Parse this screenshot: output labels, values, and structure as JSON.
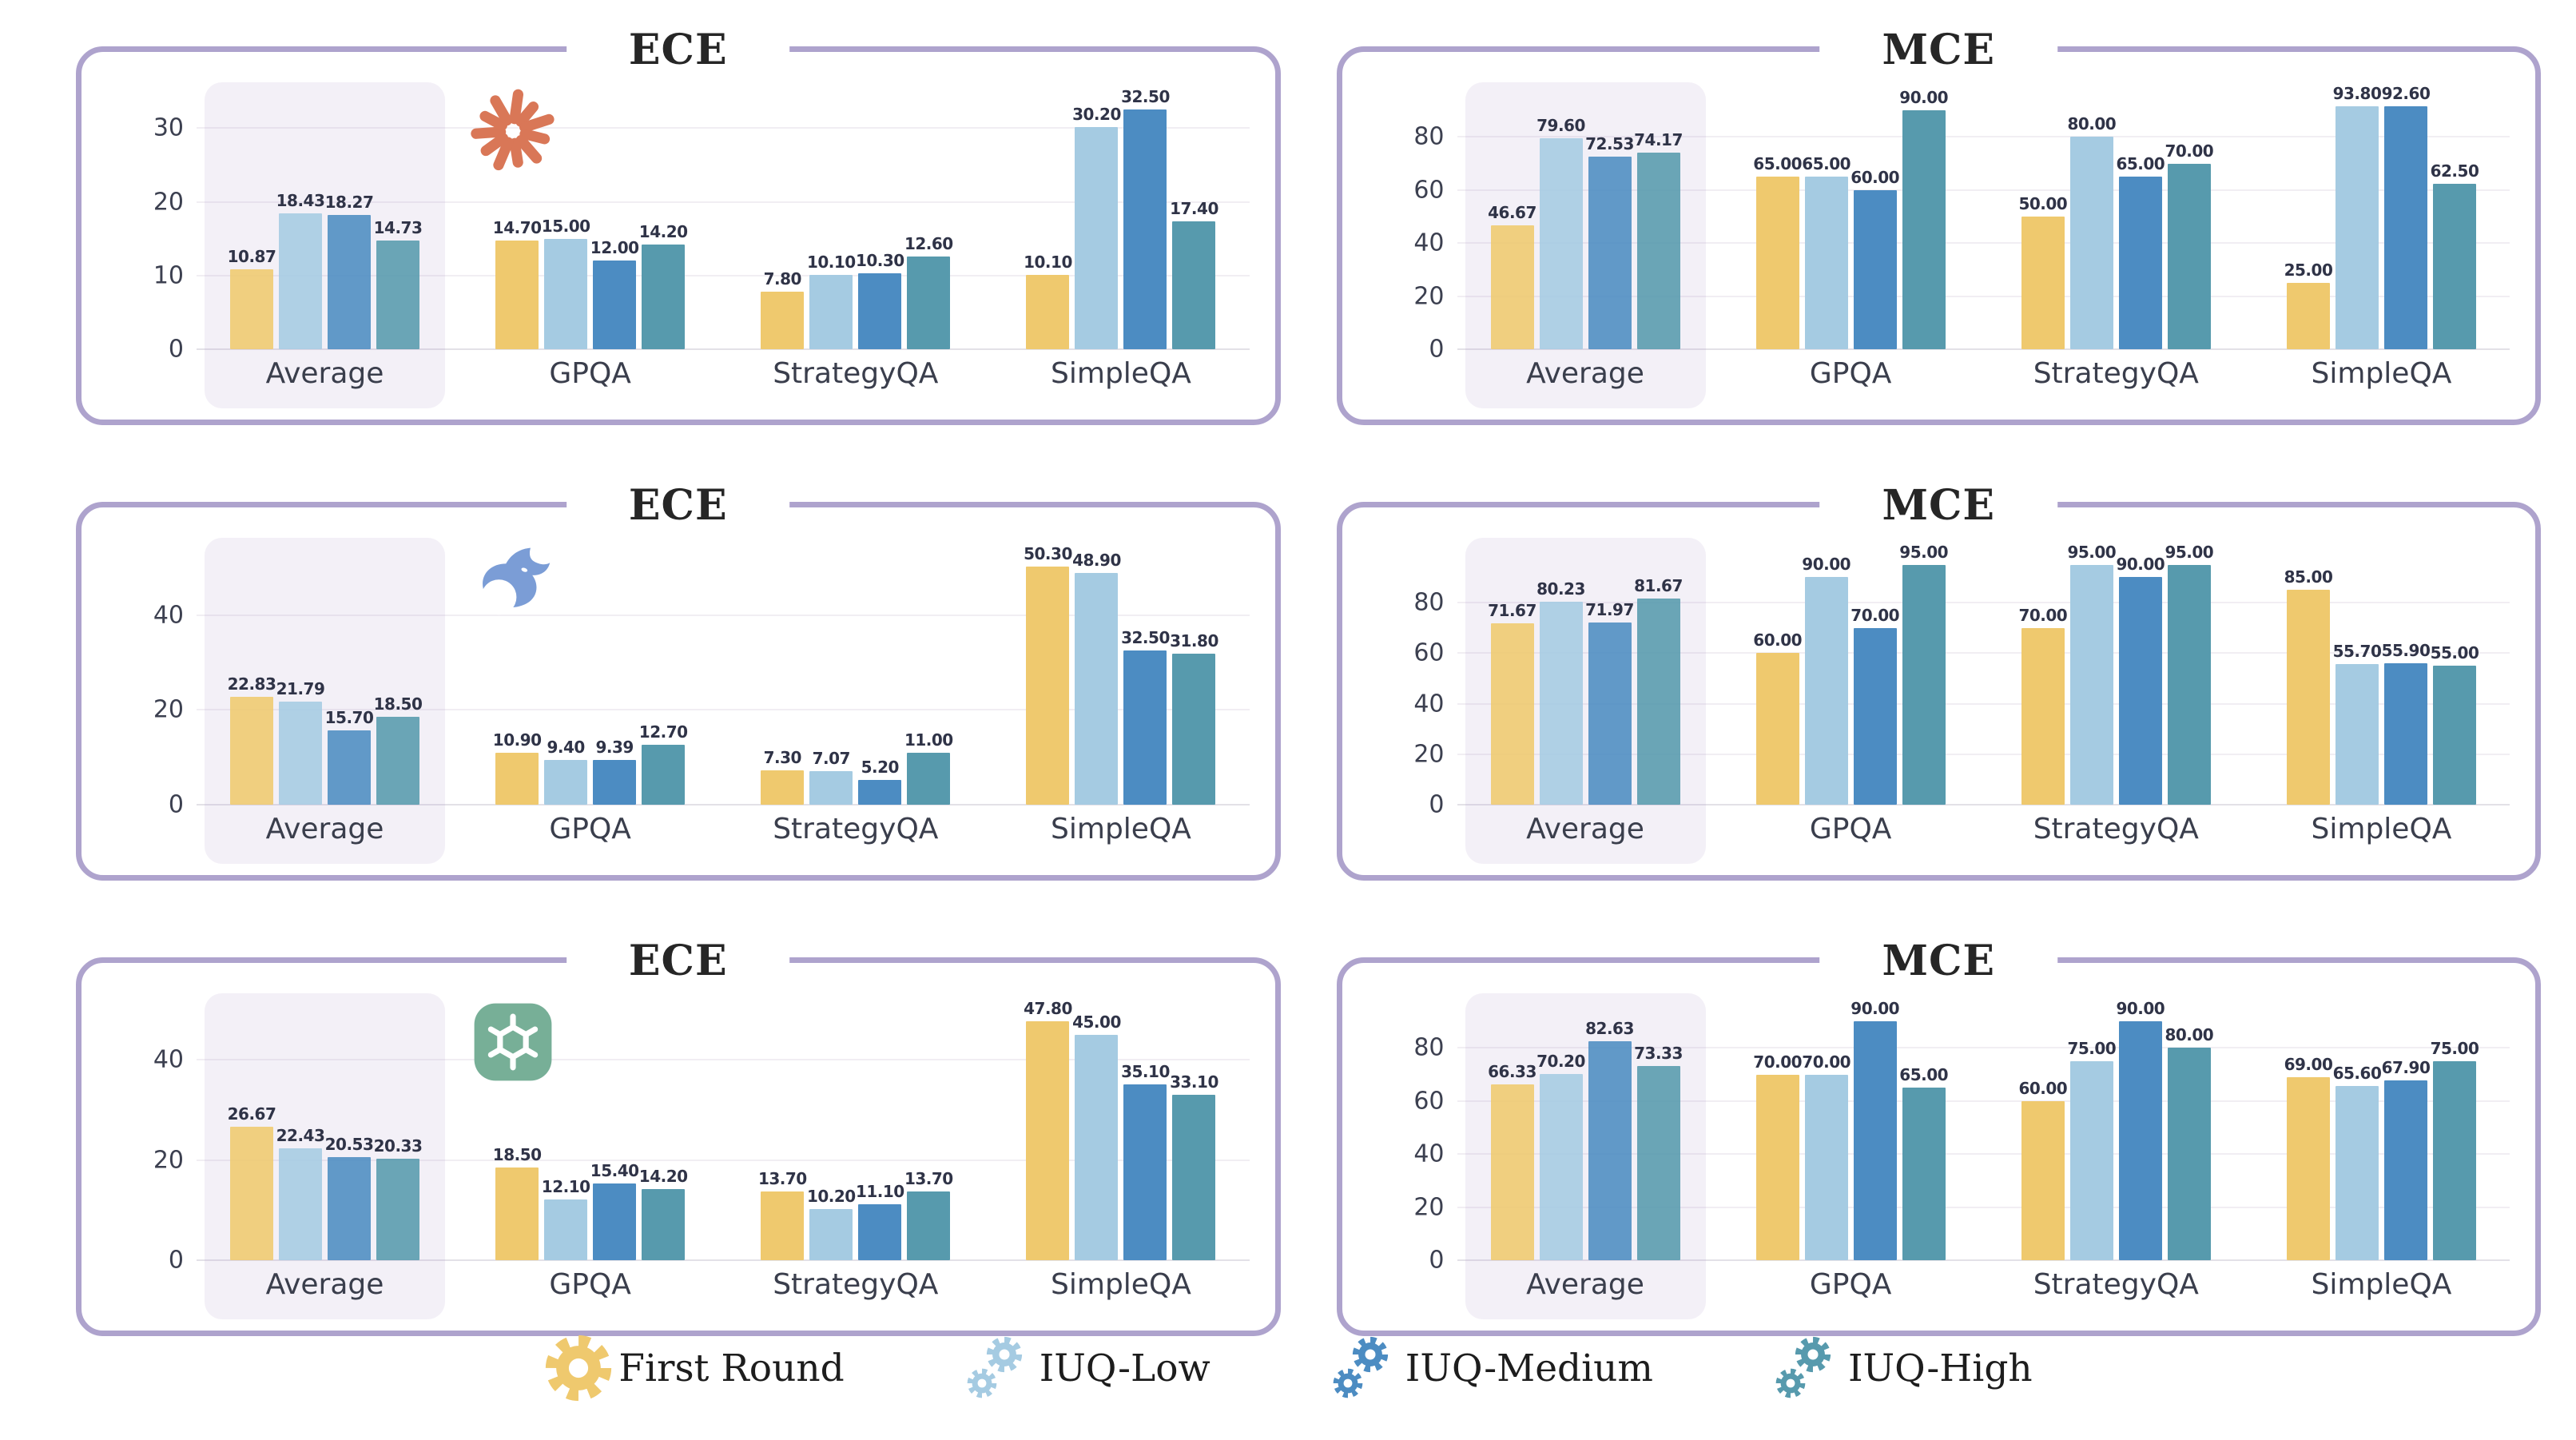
{
  "style": {
    "panel_border_color": "#AEA3CD",
    "highlight_box_color": "#EFEBF4",
    "grid_color": "#F1EEF3",
    "value_label_color": "#2F3347",
    "claude_logo_color": "#D97757",
    "deepseek_logo_color": "#7B9DD6",
    "openai_logo_color": "#77AF97"
  },
  "series": [
    {
      "label": "First Round",
      "color": "#EFC96E"
    },
    {
      "label": "IUQ-Low",
      "color": "#A5CBE2"
    },
    {
      "label": "IUQ-Medium",
      "color": "#4C8CC2"
    },
    {
      "label": "IUQ-High",
      "color": "#579AAD"
    }
  ],
  "chart_data": [
    {
      "type": "bar",
      "title": "ECE",
      "icon": "claude",
      "categories": [
        "Average",
        "GPQA",
        "StrategyQA",
        "SimpleQA"
      ],
      "highlight_category": "Average",
      "yticks": [
        0,
        10,
        20,
        30
      ],
      "ylim": [
        0,
        36
      ],
      "grid": true,
      "groups": [
        {
          "category": "Average",
          "values": [
            "10.87",
            "18.43",
            "18.27",
            "14.73"
          ]
        },
        {
          "category": "GPQA",
          "values": [
            "14.70",
            "15.00",
            "12.00",
            "14.20"
          ]
        },
        {
          "category": "StrategyQA",
          "values": [
            "7.80",
            "10.10",
            "10.30",
            "12.60"
          ]
        },
        {
          "category": "SimpleQA",
          "values": [
            "10.10",
            "30.20",
            "32.50",
            "17.40"
          ]
        }
      ]
    },
    {
      "type": "bar",
      "title": "MCE",
      "icon": "none",
      "categories": [
        "Average",
        "GPQA",
        "StrategyQA",
        "SimpleQA"
      ],
      "highlight_category": "Average",
      "yticks": [
        0,
        20,
        40,
        60,
        80
      ],
      "ylim": [
        0,
        100
      ],
      "grid": true,
      "groups": [
        {
          "category": "Average",
          "values": [
            "46.67",
            "79.60",
            "72.53",
            "74.17"
          ]
        },
        {
          "category": "GPQA",
          "values": [
            "65.00",
            "65.00",
            "60.00",
            "90.00"
          ]
        },
        {
          "category": "StrategyQA",
          "values": [
            "50.00",
            "80.00",
            "65.00",
            "70.00"
          ]
        },
        {
          "category": "SimpleQA",
          "values": [
            "25.00",
            "93.80",
            "92.60",
            "62.50"
          ]
        }
      ]
    },
    {
      "type": "bar",
      "title": "ECE",
      "icon": "deepseek",
      "categories": [
        "Average",
        "GPQA",
        "StrategyQA",
        "SimpleQA"
      ],
      "highlight_category": "Average",
      "yticks": [
        0,
        20,
        40
      ],
      "ylim": [
        0,
        56
      ],
      "grid": true,
      "groups": [
        {
          "category": "Average",
          "values": [
            "22.83",
            "21.79",
            "15.70",
            "18.50"
          ]
        },
        {
          "category": "GPQA",
          "values": [
            "10.90",
            "9.40",
            "9.39",
            "12.70"
          ]
        },
        {
          "category": "StrategyQA",
          "values": [
            "7.30",
            "7.07",
            "5.20",
            "11.00"
          ]
        },
        {
          "category": "SimpleQA",
          "values": [
            "50.30",
            "48.90",
            "32.50",
            "31.80"
          ]
        }
      ]
    },
    {
      "type": "bar",
      "title": "MCE",
      "icon": "none",
      "categories": [
        "Average",
        "GPQA",
        "StrategyQA",
        "SimpleQA"
      ],
      "highlight_category": "Average",
      "yticks": [
        0,
        20,
        40,
        60,
        80
      ],
      "ylim": [
        0,
        105
      ],
      "grid": true,
      "groups": [
        {
          "category": "Average",
          "values": [
            "71.67",
            "80.23",
            "71.97",
            "81.67"
          ]
        },
        {
          "category": "GPQA",
          "values": [
            "60.00",
            "90.00",
            "70.00",
            "95.00"
          ]
        },
        {
          "category": "StrategyQA",
          "values": [
            "70.00",
            "95.00",
            "90.00",
            "95.00"
          ]
        },
        {
          "category": "SimpleQA",
          "values": [
            "85.00",
            "55.70",
            "55.90",
            "55.00"
          ]
        }
      ]
    },
    {
      "type": "bar",
      "title": "ECE",
      "icon": "openai",
      "categories": [
        "Average",
        "GPQA",
        "StrategyQA",
        "SimpleQA"
      ],
      "highlight_category": "Average",
      "yticks": [
        0,
        20,
        40
      ],
      "ylim": [
        0,
        53
      ],
      "grid": true,
      "groups": [
        {
          "category": "Average",
          "values": [
            "26.67",
            "22.43",
            "20.53",
            "20.33"
          ]
        },
        {
          "category": "GPQA",
          "values": [
            "18.50",
            "12.10",
            "15.40",
            "14.20"
          ]
        },
        {
          "category": "StrategyQA",
          "values": [
            "13.70",
            "10.20",
            "11.10",
            "13.70"
          ]
        },
        {
          "category": "SimpleQA",
          "values": [
            "47.80",
            "45.00",
            "35.10",
            "33.10"
          ]
        }
      ]
    },
    {
      "type": "bar",
      "title": "MCE",
      "icon": "none",
      "categories": [
        "Average",
        "GPQA",
        "StrategyQA",
        "SimpleQA"
      ],
      "highlight_category": "Average",
      "yticks": [
        0,
        20,
        40,
        60,
        80
      ],
      "ylim": [
        0,
        100
      ],
      "grid": true,
      "groups": [
        {
          "category": "Average",
          "values": [
            "66.33",
            "70.20",
            "82.63",
            "73.33"
          ]
        },
        {
          "category": "GPQA",
          "values": [
            "70.00",
            "70.00",
            "90.00",
            "65.00"
          ]
        },
        {
          "category": "StrategyQA",
          "values": [
            "60.00",
            "75.00",
            "90.00",
            "80.00"
          ]
        },
        {
          "category": "SimpleQA",
          "values": [
            "69.00",
            "65.60",
            "67.90",
            "75.00"
          ]
        }
      ]
    }
  ],
  "legend": {
    "items": [
      {
        "label": "First Round",
        "gears": 1
      },
      {
        "label": "IUQ-Low",
        "gears": 2
      },
      {
        "label": "IUQ-Medium",
        "gears": 2
      },
      {
        "label": "IUQ-High",
        "gears": 2
      }
    ]
  }
}
